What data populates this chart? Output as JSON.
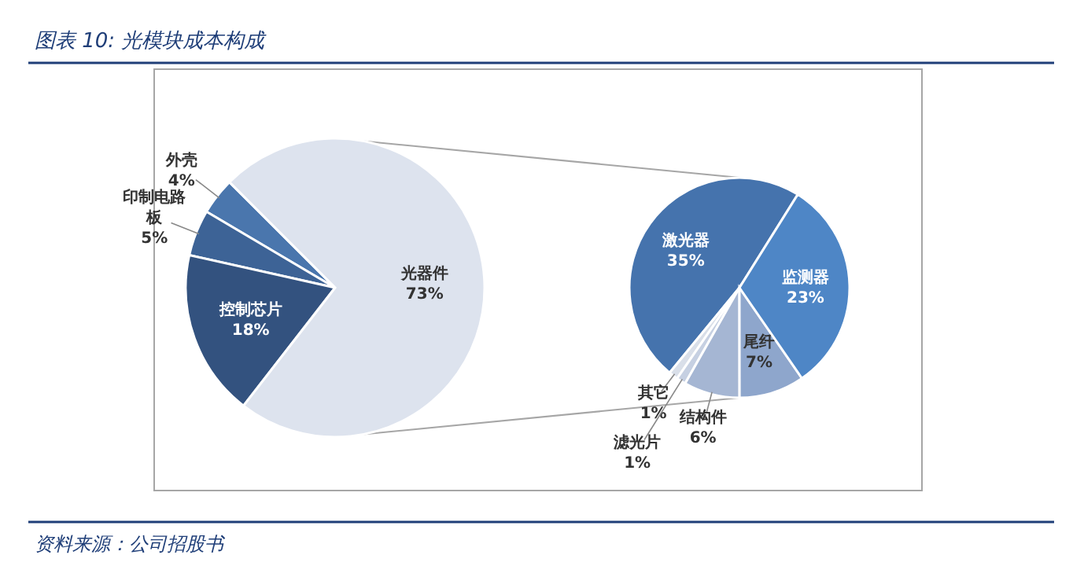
{
  "chart_data": [
    {
      "type": "pie",
      "title": "图表 10:  光模块成本构成",
      "annotations": [
        "资料来源：公司招股书"
      ],
      "categories": [
        "外壳",
        "印制电路板",
        "控制芯片",
        "光器件"
      ],
      "values": [
        4,
        5,
        18,
        73
      ],
      "value_labels": [
        "4%",
        "5%",
        "18%",
        "73%"
      ],
      "colors": [
        "#4a76ad",
        "#3d6396",
        "#33527f",
        "#dde3ee"
      ]
    },
    {
      "type": "pie",
      "categories": [
        "激光器",
        "其它",
        "滤光片",
        "结构件",
        "尾纤",
        "监测器"
      ],
      "values": [
        35,
        1,
        1,
        6,
        7,
        23
      ],
      "value_labels": [
        "35%",
        "1%",
        "1%",
        "6%",
        "7%",
        "23%"
      ],
      "colors": [
        "#4573ad",
        "#d9dfe9",
        "#c6d0e2",
        "#a5b6d3",
        "#8ea6cc",
        "#4e86c6"
      ]
    }
  ]
}
